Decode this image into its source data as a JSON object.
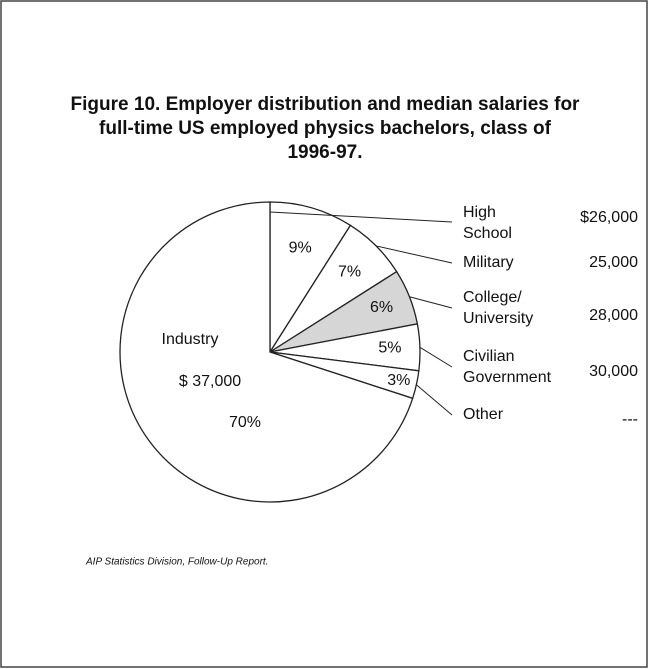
{
  "chart_data": {
    "type": "pie",
    "title": [
      "Figure 10.  Employer distribution and median salaries for",
      "full-time US employed physics bachelors, class of",
      "1996-97."
    ],
    "categories": [
      "High School",
      "Military",
      "College/ University",
      "Civilian Government",
      "Other",
      "Industry"
    ],
    "values": [
      9,
      7,
      6,
      5,
      3,
      70
    ],
    "value_labels": [
      "9%",
      "7%",
      "6%",
      "5%",
      "3%",
      "70%"
    ],
    "salaries": [
      "$26,000",
      "25,000",
      "28,000",
      "30,000",
      "---",
      "$ 37,000"
    ],
    "colors": [
      "#ffffff",
      "#ffffff",
      "#d6d6d6",
      "#ffffff",
      "#ffffff",
      "#ffffff"
    ],
    "source": "AIP Statistics Division, Follow-Up Report."
  }
}
